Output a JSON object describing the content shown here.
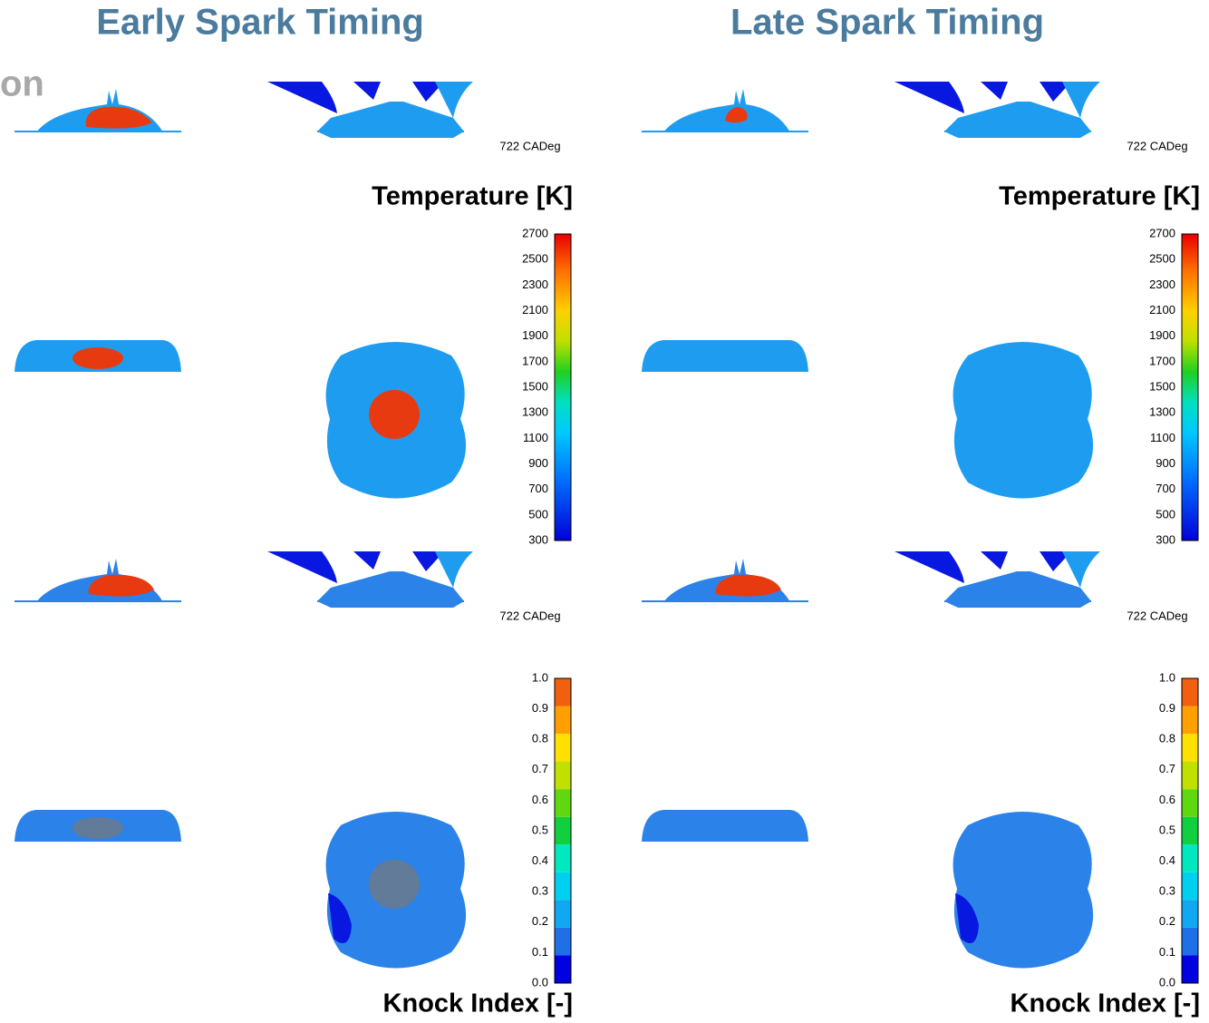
{
  "header": {
    "partial_label": "on"
  },
  "columns": [
    {
      "title": "Early Spark Timing",
      "temperature": {
        "timestamp": "722 CADeg",
        "label": "Temperature [K]",
        "ticks": [
          "2700",
          "2500",
          "2300",
          "2100",
          "1900",
          "1700",
          "1500",
          "1300",
          "1100",
          "900",
          "700",
          "500",
          "300"
        ]
      },
      "knock": {
        "timestamp": "722 CADeg",
        "label": "Knock Index [-]",
        "ticks": [
          "1.0",
          "0.9",
          "0.8",
          "0.7",
          "0.6",
          "0.5",
          "0.4",
          "0.3",
          "0.2",
          "0.1",
          "0.0"
        ]
      }
    },
    {
      "title": "Late Spark Timing",
      "temperature": {
        "timestamp": "722 CADeg",
        "label": "Temperature [K]",
        "ticks": [
          "2700",
          "2500",
          "2300",
          "2100",
          "1900",
          "1700",
          "1500",
          "1300",
          "1100",
          "900",
          "700",
          "500",
          "300"
        ]
      },
      "knock": {
        "timestamp": "722 CADeg",
        "label": "Knock Index [-]",
        "ticks": [
          "1.0",
          "0.9",
          "0.8",
          "0.7",
          "0.6",
          "0.5",
          "0.4",
          "0.3",
          "0.2",
          "0.1",
          "0.0"
        ]
      }
    }
  ]
}
